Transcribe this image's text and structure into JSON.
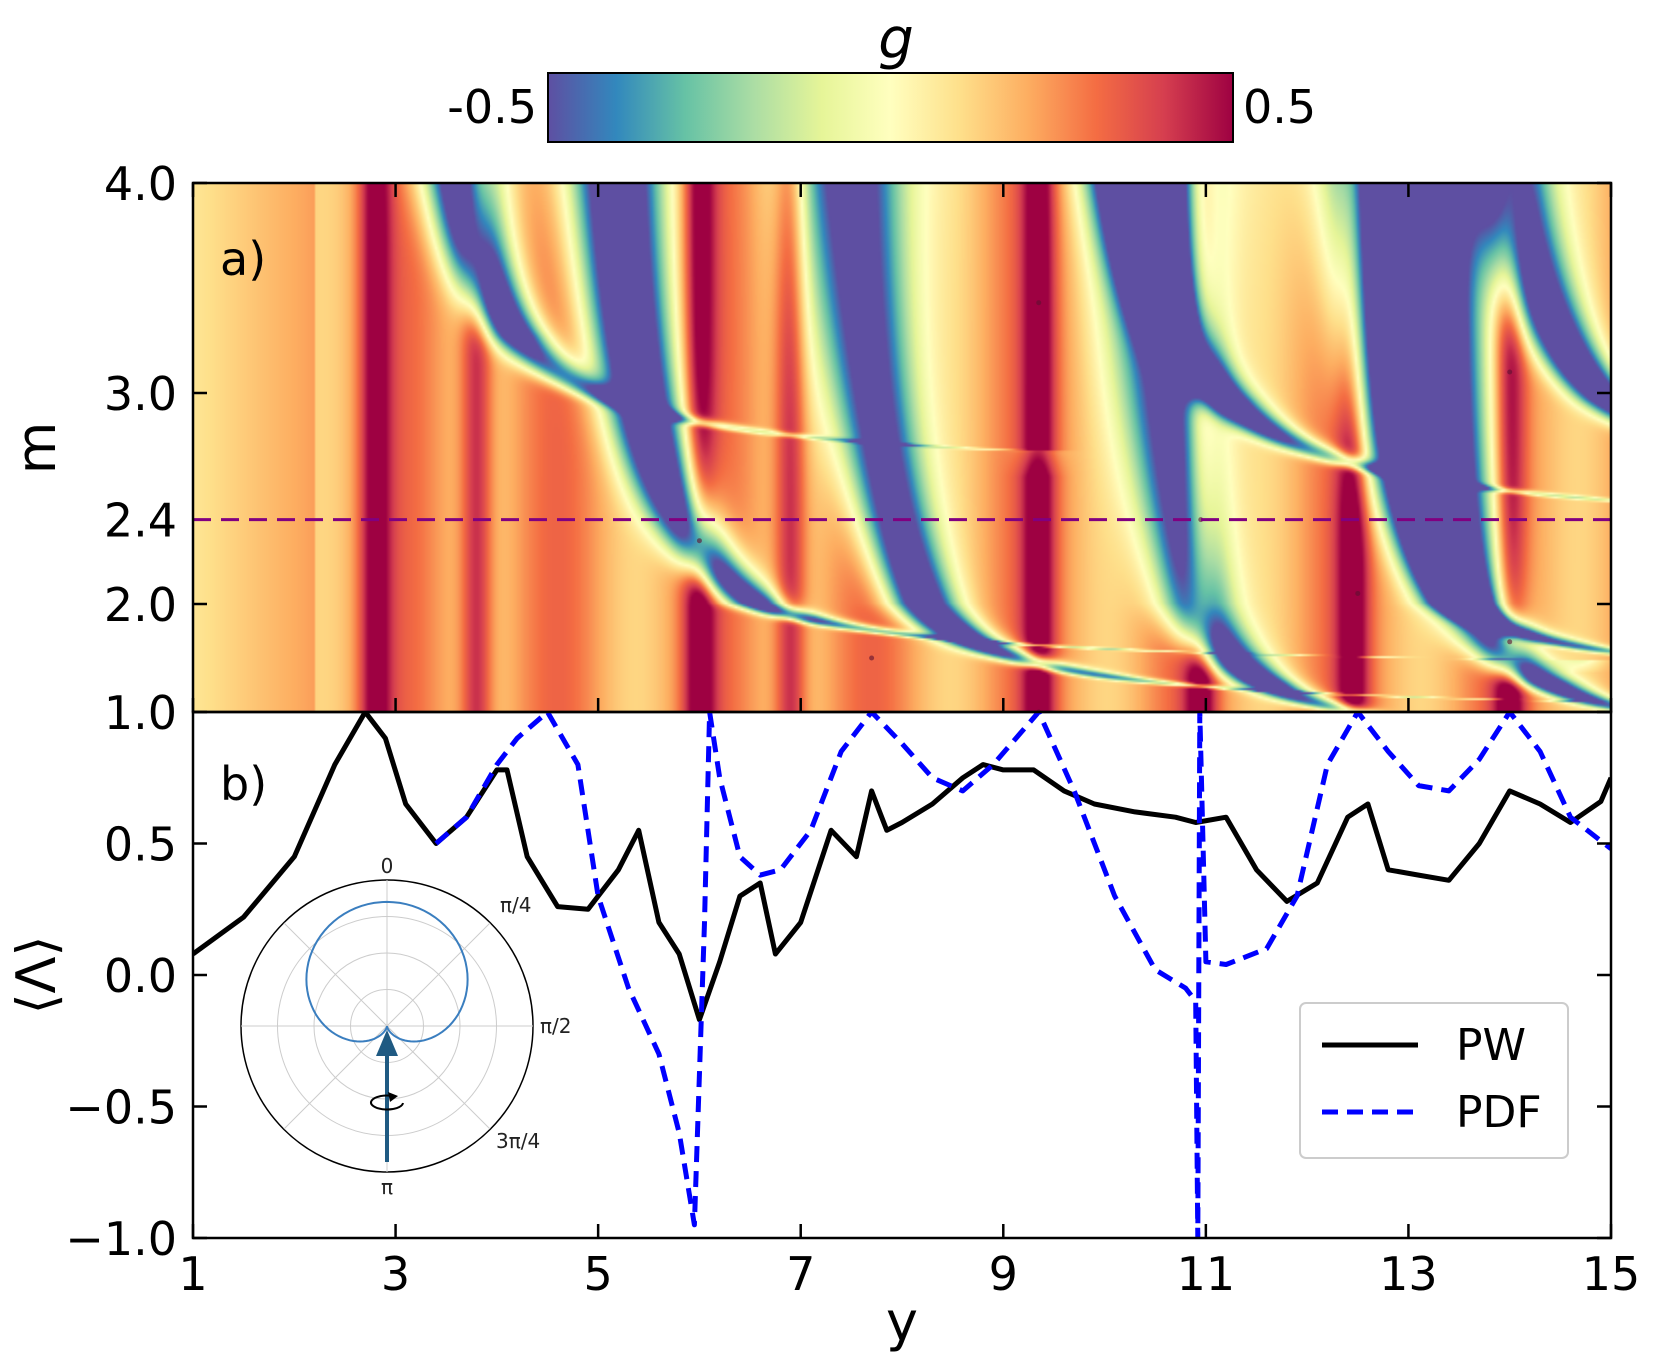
{
  "colorbar": {
    "label": "g",
    "min_label": "-0.5",
    "max_label": "0.5",
    "range": [
      -0.5,
      0.5
    ],
    "colormap": "Spectral_r",
    "stops": [
      "#5e4fa2",
      "#3288bd",
      "#66c2a5",
      "#abdda4",
      "#e6f598",
      "#ffffbf",
      "#fee08b",
      "#fdae61",
      "#f46d43",
      "#d53e4f",
      "#9e0142"
    ]
  },
  "chart_data": [
    {
      "type": "heatmap",
      "panel_label": "a)",
      "xlabel": "y",
      "ylabel": "m",
      "xlim": [
        1,
        15
      ],
      "ylim": [
        1.0,
        4.0
      ],
      "yticks": [
        "1.0",
        "2.0",
        "3.0",
        "4.0"
      ],
      "y_scale": "nonlinear",
      "y_tick_values": [
        1.0,
        2.0,
        3.0,
        4.0
      ],
      "highlight_line": {
        "value": 2.4,
        "label": "2.4",
        "color": "#800080",
        "style": "dashed"
      },
      "resonance_crossings": [
        {
          "y": 6.0,
          "m": 2.3
        },
        {
          "y": 7.7,
          "m": 1.5
        },
        {
          "y": 9.35,
          "m": 1.0
        },
        {
          "y": 9.35,
          "m": 3.43
        },
        {
          "y": 10.95,
          "m": 2.4
        },
        {
          "y": 12.5,
          "m": 2.05
        },
        {
          "y": 14.0,
          "m": 3.1
        },
        {
          "y": 14.0,
          "m": 1.65
        }
      ]
    },
    {
      "type": "line",
      "panel_label": "b)",
      "xlabel": "y",
      "ylabel": "⟨Λ⟩",
      "xlim": [
        1,
        15
      ],
      "ylim": [
        -1.0,
        1.0
      ],
      "xticks": [
        "1",
        "3",
        "5",
        "7",
        "9",
        "11",
        "13",
        "15"
      ],
      "yticks": [
        "−1.0",
        "−0.5",
        "0.0",
        "0.5",
        "1.0"
      ],
      "series": [
        {
          "name": "PW",
          "color": "#000000",
          "style": "solid",
          "x": [
            1.0,
            1.5,
            2.0,
            2.4,
            2.7,
            2.9,
            3.1,
            3.4,
            3.7,
            4.0,
            4.1,
            4.3,
            4.6,
            4.9,
            5.2,
            5.4,
            5.6,
            5.8,
            6.0,
            6.2,
            6.4,
            6.6,
            6.75,
            7.0,
            7.3,
            7.55,
            7.7,
            7.8,
            7.85,
            8.0,
            8.3,
            8.6,
            8.8,
            9.0,
            9.3,
            9.6,
            9.9,
            10.3,
            10.7,
            10.9,
            11.2,
            11.5,
            11.8,
            12.1,
            12.4,
            12.6,
            12.8,
            13.1,
            13.4,
            13.7,
            14.0,
            14.3,
            14.6,
            14.9,
            15.0
          ],
          "y": [
            0.08,
            0.22,
            0.45,
            0.8,
            1.0,
            0.9,
            0.65,
            0.5,
            0.6,
            0.78,
            0.78,
            0.45,
            0.26,
            0.25,
            0.4,
            0.55,
            0.2,
            0.08,
            -0.17,
            0.05,
            0.3,
            0.35,
            0.08,
            0.2,
            0.55,
            0.45,
            0.7,
            0.6,
            0.55,
            0.58,
            0.65,
            0.75,
            0.8,
            0.78,
            0.78,
            0.7,
            0.65,
            0.62,
            0.6,
            0.58,
            0.6,
            0.4,
            0.28,
            0.35,
            0.6,
            0.65,
            0.4,
            0.38,
            0.36,
            0.5,
            0.7,
            0.65,
            0.58,
            0.66,
            0.75
          ]
        },
        {
          "name": "PDF",
          "color": "#0000ff",
          "style": "dashed",
          "x": [
            3.4,
            3.7,
            4.0,
            4.2,
            4.5,
            4.8,
            5.0,
            5.3,
            5.6,
            5.8,
            5.95,
            6.05,
            6.1,
            6.2,
            6.4,
            6.6,
            6.8,
            7.1,
            7.4,
            7.7,
            8.0,
            8.3,
            8.6,
            8.9,
            9.35,
            9.7,
            10.1,
            10.5,
            10.8,
            10.9,
            10.92,
            10.94,
            11.0,
            11.2,
            11.6,
            11.9,
            12.2,
            12.5,
            12.8,
            13.1,
            13.4,
            13.7,
            14.0,
            14.3,
            14.6,
            15.0
          ],
          "y": [
            0.5,
            0.6,
            0.8,
            0.9,
            1.0,
            0.8,
            0.3,
            -0.05,
            -0.3,
            -0.6,
            -0.95,
            0.2,
            1.0,
            0.75,
            0.45,
            0.38,
            0.4,
            0.55,
            0.85,
            1.0,
            0.88,
            0.75,
            0.7,
            0.8,
            1.0,
            0.7,
            0.3,
            0.02,
            -0.05,
            -0.1,
            -1.0,
            1.0,
            0.05,
            0.04,
            0.1,
            0.3,
            0.8,
            1.0,
            0.85,
            0.72,
            0.7,
            0.82,
            1.0,
            0.85,
            0.6,
            0.48
          ]
        }
      ],
      "legend": {
        "position": "lower-right",
        "entries": [
          "PW",
          "PDF"
        ]
      },
      "inset": {
        "type": "polar",
        "angle_labels": [
          "0",
          "π/4",
          "π/2",
          "3π/4",
          "π"
        ],
        "curve": "cardioid r = cos²(θ/2)",
        "curve_color": "#3a7ebf",
        "arrow_color": "#1f5a82"
      }
    }
  ]
}
